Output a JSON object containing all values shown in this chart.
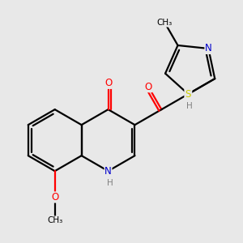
{
  "background_color": "#e8e8e8",
  "bond_color": "#000000",
  "bond_width": 1.6,
  "atom_colors": {
    "C": "#000000",
    "N": "#0000cc",
    "O": "#ff0000",
    "S": "#cccc00",
    "H": "#808080"
  },
  "font_size": 8.5,
  "figsize": [
    3.0,
    3.0
  ],
  "dpi": 100,
  "xlim": [
    -3.2,
    3.8
  ],
  "ylim": [
    -3.0,
    3.0
  ]
}
